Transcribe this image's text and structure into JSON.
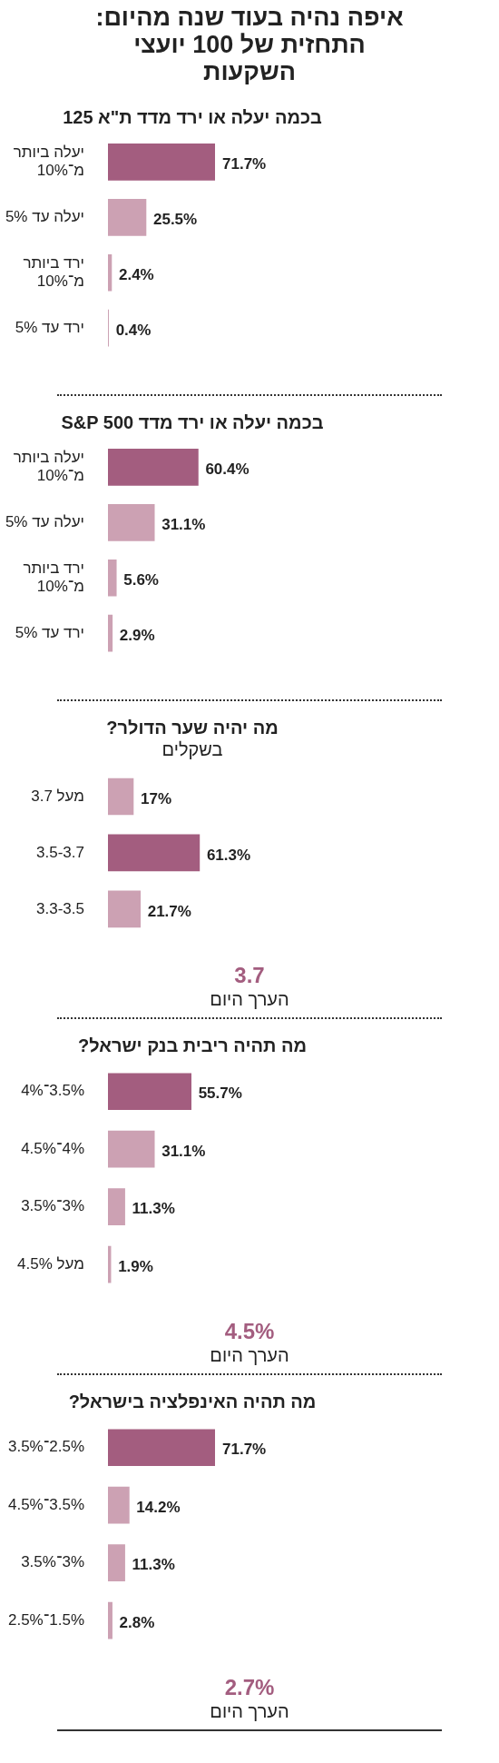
{
  "chart_data": [
    {
      "type": "other",
      "title": "איפה נהיה בעוד שנה מהיום: התחזית של 100 יועצי השקעות"
    },
    {
      "type": "bar",
      "orientation": "horizontal",
      "title": "בכמה יעלה או ירד מדד ת\"א 125",
      "categories": [
        "יעלה ביותר מ־10%",
        "יעלה עד 5%",
        "ירד ביותר מ־10%",
        "ירד עד 5%"
      ],
      "values": [
        71.7,
        25.5,
        2.4,
        0.4
      ],
      "value_labels": [
        "71.7%",
        "25.5%",
        "2.4%",
        "0.4%"
      ],
      "colors": [
        "#a35d7f",
        "#cca1b3",
        "#cca1b3",
        "#cca1b3"
      ]
    },
    {
      "type": "bar",
      "orientation": "horizontal",
      "title": "בכמה יעלה או ירד מדד S&P 500",
      "categories": [
        "יעלה ביותר מ־10%",
        "יעלה עד 5%",
        "ירד ביותר מ־10%",
        "ירד עד 5%"
      ],
      "values": [
        60.4,
        31.1,
        5.6,
        2.9
      ],
      "value_labels": [
        "60.4%",
        "31.1%",
        "5.6%",
        "2.9%"
      ],
      "colors": [
        "#a35d7f",
        "#cca1b3",
        "#cca1b3",
        "#cca1b3"
      ]
    },
    {
      "type": "bar",
      "orientation": "horizontal",
      "title": "מה יהיה שער הדולר?",
      "subtitle": "בשקלים",
      "categories": [
        "מעל 3.7",
        "3.5-3.7",
        "3.3-3.5"
      ],
      "values": [
        17,
        61.3,
        21.7
      ],
      "value_labels": [
        "17%",
        "61.3%",
        "21.7%"
      ],
      "colors": [
        "#cca1b3",
        "#a35d7f",
        "#cca1b3"
      ],
      "annotations": [
        "3.7",
        "הערך היום"
      ]
    },
    {
      "type": "bar",
      "orientation": "horizontal",
      "title": "מה תהיה ריבית בנק ישראל?",
      "categories": [
        "3.5%־4%",
        "4%־4.5%",
        "3%־3.5%",
        "מעל 4.5%"
      ],
      "values": [
        55.7,
        31.1,
        11.3,
        1.9
      ],
      "value_labels": [
        "55.7%",
        "31.1%",
        "11.3%",
        "1.9%"
      ],
      "colors": [
        "#a35d7f",
        "#cca1b3",
        "#cca1b3",
        "#cca1b3"
      ],
      "annotations": [
        "4.5%",
        "הערך היום"
      ]
    },
    {
      "type": "bar",
      "orientation": "horizontal",
      "title": "מה תהיה האינפלציה בישראל?",
      "categories": [
        "2.5%־3.5%",
        "3.5%־4.5%",
        "3%־3.5%",
        "1.5%־2.5%"
      ],
      "values": [
        71.7,
        14.2,
        11.3,
        2.8
      ],
      "value_labels": [
        "71.7%",
        "14.2%",
        "11.3%",
        "2.8%"
      ],
      "colors": [
        "#a35d7f",
        "#cca1b3",
        "#cca1b3",
        "#cca1b3"
      ],
      "annotations": [
        "2.7%",
        "הערך היום"
      ]
    }
  ]
}
